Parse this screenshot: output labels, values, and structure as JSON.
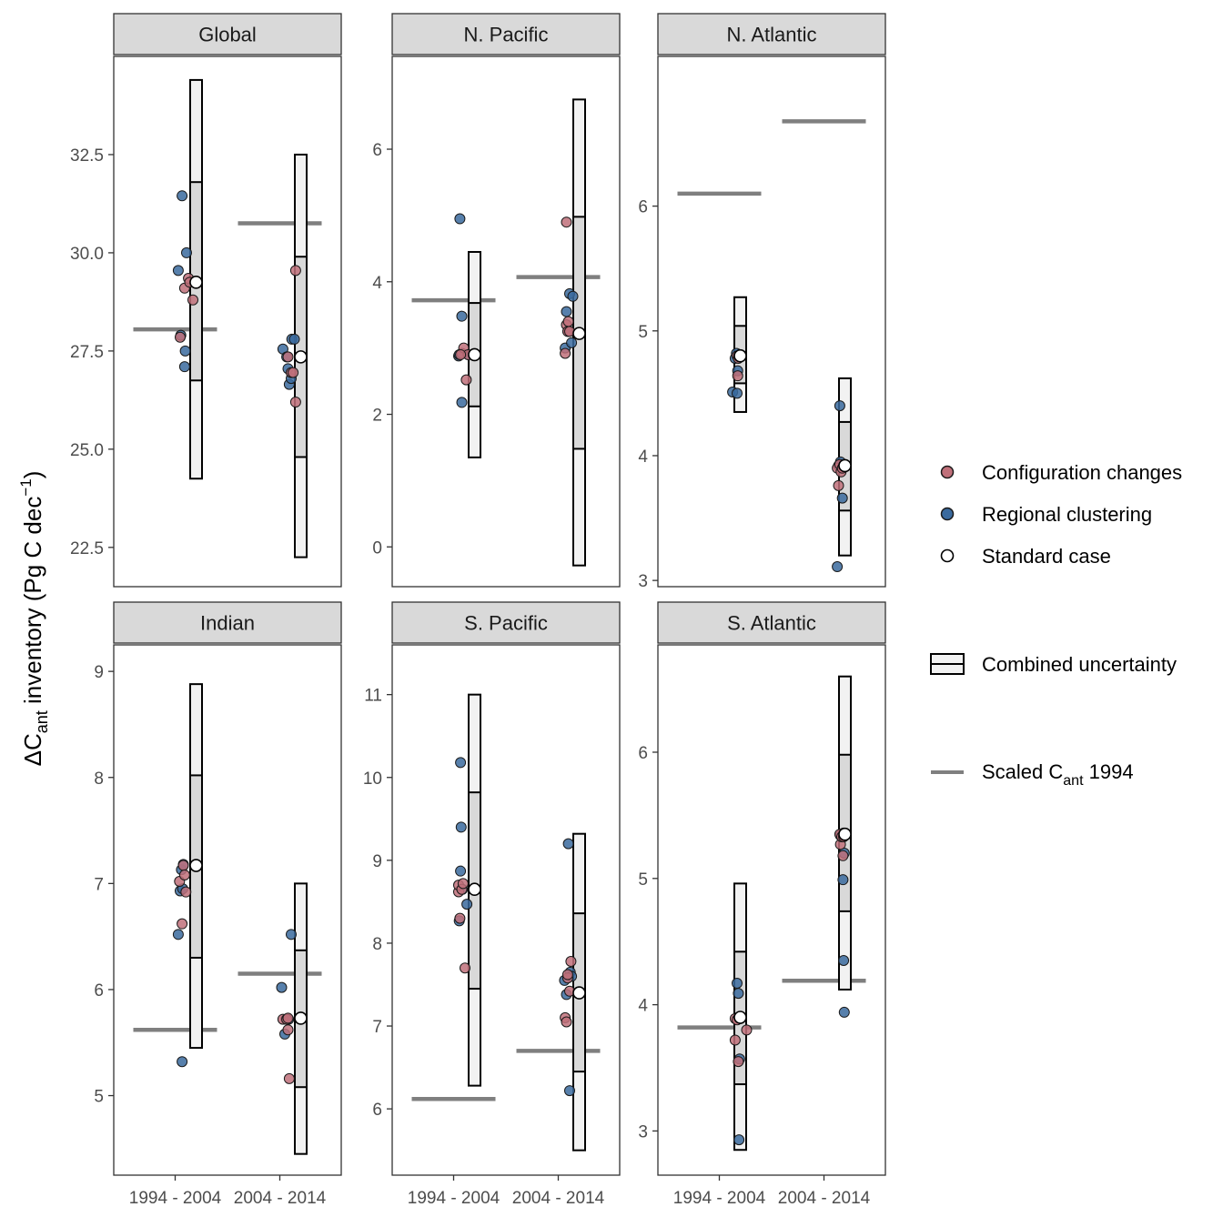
{
  "chart_data": {
    "type": "scatter",
    "description_type": "faceted dot plot with uncertainty boxes",
    "y_axis_title": {
      "prefix": "Δ",
      "main": "C",
      "sub": "ant",
      "rest": " inventory (Pg C dec",
      "sup": "−1",
      "end": ")"
    },
    "categories": [
      "1994 - 2004",
      "2004 - 2014"
    ],
    "colors": {
      "configuration": "#c0707a",
      "regional": "#3a6a9e",
      "standard": "#ffffff",
      "box_fill_outer": "#f2f2f2",
      "box_fill_inner": "#d9d9d9",
      "scaled_line": "#7f7f7f",
      "strip_bg": "#d9d9d9"
    },
    "legend": {
      "configuration": "Configuration changes",
      "regional": "Regional clustering",
      "standard": "Standard case",
      "uncertainty": "Combined uncertainty",
      "scaled_prefix": "Scaled C",
      "scaled_sub": "ant",
      "scaled_suffix": " 1994"
    },
    "panels": [
      {
        "name": "Global",
        "ylim": [
          21.5,
          35.0
        ],
        "ticks": [
          {
            "v": 22.5,
            "label": "22.5"
          },
          {
            "v": 25.0,
            "label": "25.0"
          },
          {
            "v": 27.5,
            "label": "27.5"
          },
          {
            "v": 30.0,
            "label": "30.0"
          },
          {
            "v": 32.5,
            "label": "32.5"
          }
        ],
        "groups": [
          {
            "scaled": 28.05,
            "box": {
              "lo": 24.25,
              "q1": 26.75,
              "q3": 31.8,
              "hi": 34.4
            },
            "standard": 29.25,
            "config": [
              [
                -0.25,
                27.85
              ],
              [
                -0.18,
                29.1
              ],
              [
                -0.12,
                29.35
              ],
              [
                -0.1,
                29.25
              ],
              [
                -0.05,
                28.8
              ]
            ],
            "regional": [
              [
                -0.28,
                29.55
              ],
              [
                -0.22,
                31.45
              ],
              [
                -0.24,
                27.9
              ],
              [
                -0.15,
                30.0
              ],
              [
                -0.17,
                27.5
              ],
              [
                -0.18,
                27.1
              ]
            ]
          },
          {
            "scaled": 30.75,
            "box": {
              "lo": 22.25,
              "q1": 24.8,
              "q3": 29.9,
              "hi": 32.5
            },
            "standard": 27.35,
            "config": [
              [
                -0.2,
                27.35
              ],
              [
                -0.15,
                26.95
              ],
              [
                -0.12,
                26.95
              ],
              [
                -0.08,
                26.2
              ],
              [
                -0.08,
                29.55
              ]
            ],
            "regional": [
              [
                -0.28,
                27.55
              ],
              [
                -0.22,
                27.35
              ],
              [
                -0.18,
                26.65
              ],
              [
                -0.15,
                26.8
              ],
              [
                -0.14,
                27.8
              ],
              [
                -0.1,
                27.8
              ],
              [
                -0.2,
                27.05
              ]
            ]
          }
        ]
      },
      {
        "name": "N. Pacific",
        "ylim": [
          -0.6,
          7.4
        ],
        "ticks": [
          {
            "v": 0,
            "label": "0"
          },
          {
            "v": 2,
            "label": "2"
          },
          {
            "v": 4,
            "label": "4"
          },
          {
            "v": 6,
            "label": "6"
          }
        ],
        "groups": [
          {
            "scaled": 3.72,
            "box": {
              "lo": 1.35,
              "q1": 2.12,
              "q3": 3.68,
              "hi": 4.45
            },
            "standard": 2.9,
            "config": [
              [
                -0.2,
                2.92
              ],
              [
                -0.17,
                3.0
              ],
              [
                -0.13,
                2.52
              ],
              [
                -0.1,
                2.9
              ],
              [
                -0.22,
                2.9
              ]
            ],
            "regional": [
              [
                -0.25,
                2.88
              ],
              [
                -0.23,
                4.95
              ],
              [
                -0.2,
                3.48
              ],
              [
                -0.2,
                2.18
              ],
              [
                -0.1,
                2.9
              ],
              [
                -0.24,
                2.9
              ]
            ]
          },
          {
            "scaled": 4.07,
            "box": {
              "lo": -0.28,
              "q1": 1.48,
              "q3": 4.98,
              "hi": 6.75
            },
            "standard": 3.22,
            "config": [
              [
                -0.22,
                2.92
              ],
              [
                -0.2,
                3.35
              ],
              [
                -0.18,
                3.25
              ],
              [
                -0.17,
                3.4
              ],
              [
                -0.15,
                3.25
              ],
              [
                -0.2,
                4.9
              ]
            ],
            "regional": [
              [
                -0.22,
                3.0
              ],
              [
                -0.2,
                3.55
              ],
              [
                -0.15,
                3.82
              ],
              [
                -0.1,
                3.78
              ],
              [
                -0.12,
                3.08
              ],
              [
                -0.17,
                3.25
              ]
            ]
          }
        ]
      },
      {
        "name": "N. Atlantic",
        "ylim": [
          2.95,
          7.2
        ],
        "ticks": [
          {
            "v": 3,
            "label": "3"
          },
          {
            "v": 4,
            "label": "4"
          },
          {
            "v": 5,
            "label": "5"
          },
          {
            "v": 6,
            "label": "6"
          }
        ],
        "groups": [
          {
            "scaled": 6.1,
            "box": {
              "lo": 4.35,
              "q1": 4.58,
              "q3": 5.04,
              "hi": 5.27
            },
            "standard": 4.8,
            "config": [
              [
                -0.05,
                4.8
              ],
              [
                -0.02,
                4.8
              ],
              [
                -0.04,
                4.64
              ],
              [
                -0.01,
                4.8
              ],
              [
                -0.03,
                4.78
              ]
            ],
            "regional": [
              [
                -0.12,
                4.51
              ],
              [
                -0.08,
                4.78
              ],
              [
                -0.05,
                4.5
              ],
              [
                -0.04,
                4.68
              ],
              [
                -0.06,
                4.82
              ]
            ]
          },
          {
            "scaled": 6.68,
            "box": {
              "lo": 3.2,
              "q1": 3.56,
              "q3": 4.27,
              "hi": 4.62
            },
            "standard": 3.92,
            "config": [
              [
                -0.12,
                3.9
              ],
              [
                -0.1,
                3.76
              ],
              [
                -0.08,
                3.93
              ],
              [
                -0.06,
                3.87
              ],
              [
                -0.04,
                3.9
              ]
            ],
            "regional": [
              [
                -0.12,
                3.11
              ],
              [
                -0.08,
                4.4
              ],
              [
                -0.07,
                3.95
              ],
              [
                -0.05,
                3.9
              ],
              [
                -0.04,
                3.66
              ],
              [
                -0.1,
                3.92
              ]
            ]
          }
        ]
      },
      {
        "name": "Indian",
        "ylim": [
          4.25,
          9.25
        ],
        "ticks": [
          {
            "v": 5,
            "label": "5"
          },
          {
            "v": 6,
            "label": "6"
          },
          {
            "v": 7,
            "label": "7"
          },
          {
            "v": 8,
            "label": "8"
          },
          {
            "v": 9,
            "label": "9"
          }
        ],
        "groups": [
          {
            "scaled": 5.62,
            "box": {
              "lo": 5.45,
              "q1": 6.3,
              "q3": 8.02,
              "hi": 8.88
            },
            "standard": 7.17,
            "config": [
              [
                -0.26,
                7.02
              ],
              [
                -0.22,
                6.62
              ],
              [
                -0.2,
                7.17
              ],
              [
                -0.18,
                7.08
              ],
              [
                -0.16,
                6.92
              ]
            ],
            "regional": [
              [
                -0.28,
                6.52
              ],
              [
                -0.25,
                6.93
              ],
              [
                -0.23,
                7.13
              ],
              [
                -0.21,
                6.95
              ],
              [
                -0.2,
                7.18
              ],
              [
                -0.22,
                5.32
              ]
            ]
          },
          {
            "scaled": 6.15,
            "box": {
              "lo": 4.45,
              "q1": 5.08,
              "q3": 6.37,
              "hi": 7.0
            },
            "standard": 5.73,
            "config": [
              [
                -0.28,
                5.72
              ],
              [
                -0.22,
                5.72
              ],
              [
                -0.2,
                5.62
              ],
              [
                -0.18,
                5.16
              ],
              [
                -0.2,
                5.73
              ]
            ],
            "regional": [
              [
                -0.3,
                6.02
              ],
              [
                -0.25,
                5.58
              ],
              [
                -0.23,
                5.72
              ],
              [
                -0.15,
                6.52
              ],
              [
                -0.19,
                5.72
              ]
            ]
          }
        ]
      },
      {
        "name": "S. Pacific",
        "ylim": [
          5.2,
          11.6
        ],
        "ticks": [
          {
            "v": 6,
            "label": "6"
          },
          {
            "v": 7,
            "label": "7"
          },
          {
            "v": 8,
            "label": "8"
          },
          {
            "v": 9,
            "label": "9"
          },
          {
            "v": 10,
            "label": "10"
          },
          {
            "v": 11,
            "label": "11"
          }
        ],
        "groups": [
          {
            "scaled": 6.12,
            "box": {
              "lo": 6.28,
              "q1": 7.45,
              "q3": 9.82,
              "hi": 11.0
            },
            "standard": 8.65,
            "config": [
              [
                -0.25,
                8.62
              ],
              [
                -0.25,
                8.7
              ],
              [
                -0.23,
                8.3
              ],
              [
                -0.2,
                8.65
              ],
              [
                -0.18,
                8.72
              ],
              [
                -0.15,
                7.7
              ]
            ],
            "regional": [
              [
                -0.24,
                8.27
              ],
              [
                -0.22,
                8.87
              ],
              [
                -0.21,
                9.4
              ],
              [
                -0.22,
                10.18
              ],
              [
                -0.12,
                8.47
              ],
              [
                -0.19,
                8.65
              ]
            ]
          },
          {
            "scaled": 6.7,
            "box": {
              "lo": 5.5,
              "q1": 6.45,
              "q3": 8.36,
              "hi": 9.32
            },
            "standard": 7.4,
            "config": [
              [
                -0.22,
                7.1
              ],
              [
                -0.2,
                7.05
              ],
              [
                -0.18,
                7.58
              ],
              [
                -0.15,
                7.42
              ],
              [
                -0.13,
                7.78
              ],
              [
                -0.18,
                7.62
              ]
            ],
            "regional": [
              [
                -0.23,
                7.55
              ],
              [
                -0.2,
                7.38
              ],
              [
                -0.17,
                9.2
              ],
              [
                -0.15,
                6.22
              ],
              [
                -0.14,
                7.65
              ],
              [
                -0.12,
                7.6
              ]
            ]
          }
        ]
      },
      {
        "name": "S. Atlantic",
        "ylim": [
          2.65,
          6.85
        ],
        "ticks": [
          {
            "v": 3,
            "label": "3"
          },
          {
            "v": 4,
            "label": "4"
          },
          {
            "v": 5,
            "label": "5"
          },
          {
            "v": 6,
            "label": "6"
          }
        ],
        "groups": [
          {
            "scaled": 3.82,
            "box": {
              "lo": 2.85,
              "q1": 3.37,
              "q3": 4.42,
              "hi": 4.96
            },
            "standard": 3.9,
            "config": [
              [
                -0.08,
                3.89
              ],
              [
                -0.08,
                3.72
              ],
              [
                -0.05,
                3.88
              ],
              [
                -0.02,
                3.9
              ],
              [
                -0.03,
                3.55
              ],
              [
                0.1,
                3.8
              ]
            ],
            "regional": [
              [
                -0.05,
                4.17
              ],
              [
                -0.03,
                4.09
              ],
              [
                -0.01,
                3.57
              ],
              [
                -0.01,
                3.9
              ],
              [
                -0.02,
                2.93
              ],
              [
                0.0,
                3.89
              ]
            ]
          },
          {
            "scaled": 4.19,
            "box": {
              "lo": 4.12,
              "q1": 4.74,
              "q3": 5.98,
              "hi": 6.6
            },
            "standard": 5.35,
            "config": [
              [
                -0.08,
                5.35
              ],
              [
                -0.07,
                5.27
              ],
              [
                -0.05,
                5.33
              ],
              [
                -0.03,
                5.18
              ],
              [
                -0.02,
                5.33
              ]
            ],
            "regional": [
              [
                -0.07,
                5.34
              ],
              [
                -0.03,
                4.99
              ],
              [
                -0.02,
                5.36
              ],
              [
                -0.02,
                4.35
              ],
              [
                -0.01,
                3.94
              ],
              [
                -0.01,
                5.2
              ]
            ]
          }
        ]
      }
    ]
  }
}
